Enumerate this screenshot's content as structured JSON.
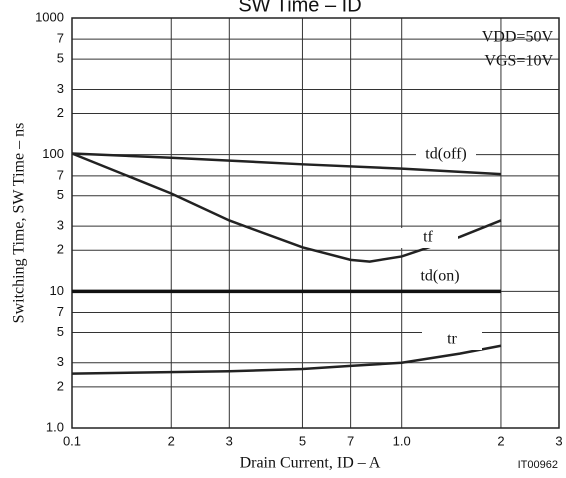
{
  "chart_data": {
    "type": "line",
    "title": "SW Time – ID",
    "x_label": "Drain Current, ID – A",
    "y_label": "Switching Time, SW Time – ns",
    "annotations": [
      "VDD=50V",
      "VGS=10V",
      "IT00962"
    ],
    "log_x": true,
    "log_y": true,
    "grid": true,
    "xlim": [
      0.1,
      3
    ],
    "ylim": [
      1,
      1000
    ],
    "xticks": [
      0.1,
      {
        "value": 0.2,
        "label": "2"
      },
      {
        "value": 0.3,
        "label": "3"
      },
      {
        "value": 0.5,
        "label": "5"
      },
      {
        "value": 0.7,
        "label": "7"
      },
      {
        "value": 1,
        "label": "1.0"
      },
      2,
      3
    ],
    "yticks": [
      1000,
      {
        "value": 700,
        "label": "7"
      },
      {
        "value": 500,
        "label": "5"
      },
      {
        "value": 300,
        "label": "3"
      },
      {
        "value": 200,
        "label": "2"
      },
      100,
      {
        "value": 70,
        "label": "7"
      },
      {
        "value": 50,
        "label": "5"
      },
      {
        "value": 30,
        "label": "3"
      },
      {
        "value": 20,
        "label": "2"
      },
      10,
      {
        "value": 7,
        "label": "7"
      },
      {
        "value": 5,
        "label": "5"
      },
      {
        "value": 3,
        "label": "3"
      },
      {
        "value": 2,
        "label": "2"
      },
      {
        "value": 1,
        "label": "1.0"
      }
    ],
    "series": [
      {
        "name": "td(off)",
        "color": "#222222",
        "x": [
          0.1,
          0.2,
          0.5,
          1,
          2
        ],
        "values": [
          102,
          95,
          85,
          79,
          72
        ]
      },
      {
        "name": "tf",
        "color": "#222222",
        "x": [
          0.1,
          0.2,
          0.3,
          0.5,
          0.7,
          0.8,
          1,
          1.5,
          2
        ],
        "values": [
          102,
          52,
          33,
          21,
          17,
          16.5,
          18,
          25,
          33
        ]
      },
      {
        "name": "td(on)",
        "color": "#111111",
        "x": [
          0.1,
          2
        ],
        "values": [
          10,
          10
        ]
      },
      {
        "name": "tr",
        "color": "#222222",
        "x": [
          0.1,
          0.3,
          0.5,
          0.7,
          1,
          1.5,
          2
        ],
        "values": [
          2.5,
          2.6,
          2.7,
          2.85,
          3,
          3.5,
          4
        ]
      }
    ]
  }
}
